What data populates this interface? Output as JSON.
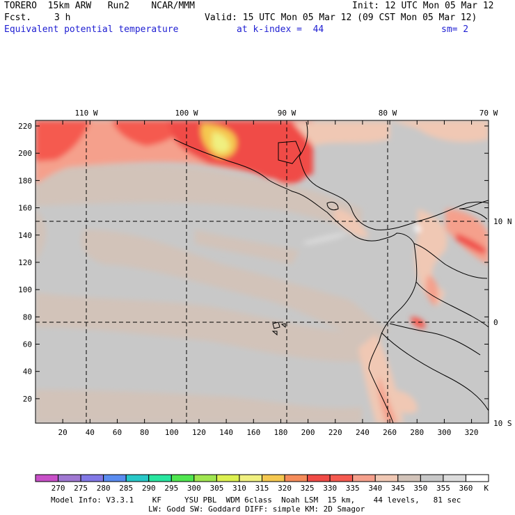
{
  "header": {
    "model": "TORERO  15km ARW   Run2    NCAR/MMM",
    "init": "Init: 12 UTC Mon 05 Mar 12",
    "fcst_label": "Fcst.",
    "fcst_value": "3 h",
    "valid": "Valid: 15 UTC Mon 05 Mar 12 (09 CST Mon 05 Mar 12)",
    "field": "Equivalent potential temperature",
    "level": "at k-index =  44",
    "smooth": "sm= 2"
  },
  "map": {
    "top_lon_labels": [
      "110 W",
      "100 W",
      "90 W",
      "80 W",
      "70 W"
    ],
    "right_lat_labels": [
      "10 N",
      "0",
      "10 S"
    ],
    "y_ticks": [
      "220",
      "200",
      "180",
      "160",
      "140",
      "120",
      "100",
      "80",
      "60",
      "40",
      "20"
    ],
    "x_ticks": [
      "20",
      "40",
      "60",
      "80",
      "100",
      "120",
      "140",
      "160",
      "180",
      "200",
      "220",
      "240",
      "260",
      "280",
      "300",
      "320"
    ]
  },
  "colorbar": {
    "values": [
      "270",
      "275",
      "280",
      "285",
      "290",
      "295",
      "300",
      "305",
      "310",
      "315",
      "320",
      "325",
      "330",
      "335",
      "340",
      "345",
      "350",
      "355",
      "360"
    ],
    "unit": "K",
    "colors": [
      "#c850c8",
      "#a078d2",
      "#8278e6",
      "#5a8cf0",
      "#28c8c8",
      "#28e6a0",
      "#50e650",
      "#a0e650",
      "#dcf050",
      "#f0f080",
      "#f5c850",
      "#f58c5a",
      "#f04b46",
      "#f55a50",
      "#f5a08c",
      "#f0c8b4",
      "#d2c3b9",
      "#c8c8c8",
      "#dcdcdc",
      "#ffffff"
    ]
  },
  "footer": {
    "line1": "Model Info: V3.3.1    KF     YSU PBL  WDM 6class  Noah LSM  15 km,    44 levels,   81 sec",
    "line2": "LW: Godd SW: Goddard DIFF: simple KM: 2D Smagor"
  }
}
